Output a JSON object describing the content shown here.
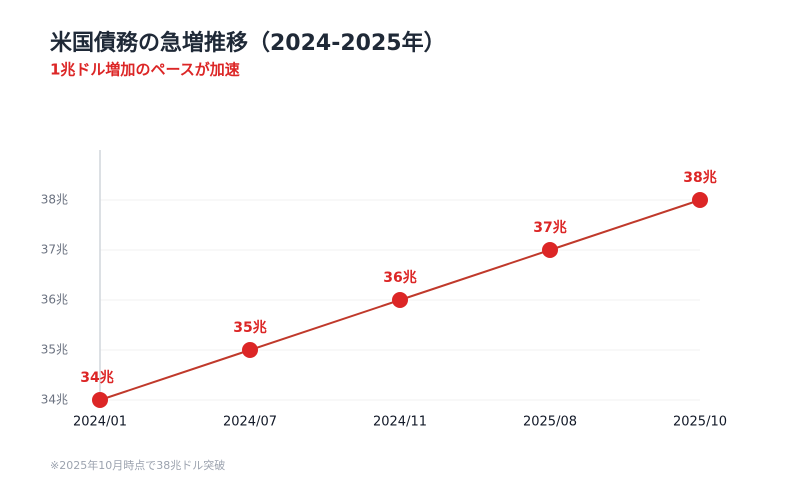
{
  "chart_data": {
    "type": "line",
    "title": "米国債務の急増推移（2024-2025年）",
    "subtitle": "1兆ドル増加のペースが加速",
    "footnote": "※2025年10月時点で38兆ドル突破",
    "categories": [
      "2024/01",
      "2024/07",
      "2024/11",
      "2025/08",
      "2025/10"
    ],
    "values": [
      34,
      35,
      36,
      37,
      38
    ],
    "value_labels": [
      "34兆",
      "35兆",
      "36兆",
      "37兆",
      "38兆"
    ],
    "color": "#dc2626",
    "ylim": [
      34,
      39
    ],
    "yticks": [
      {
        "value": 34,
        "label": "34兆"
      },
      {
        "value": 35,
        "label": "35兆"
      },
      {
        "value": 36,
        "label": "36兆"
      },
      {
        "value": 37,
        "label": "37兆"
      },
      {
        "value": 38,
        "label": "38兆"
      }
    ],
    "grid": true
  }
}
